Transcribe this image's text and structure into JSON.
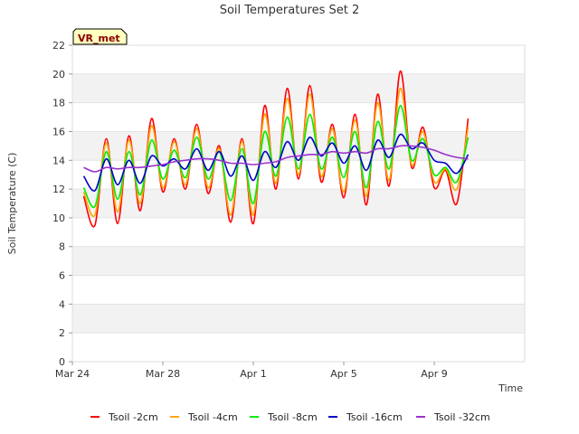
{
  "chart_data": {
    "type": "line",
    "title": "Soil Temperatures Set 2",
    "xlabel": "Time",
    "ylabel": "Soil Temperature (C)",
    "badge": "VR_met",
    "ylim": [
      0,
      22
    ],
    "yticks": [
      0,
      2,
      4,
      6,
      8,
      10,
      12,
      14,
      16,
      18,
      20,
      22
    ],
    "xlim": [
      "2024-03-24T00:00",
      "2024-04-13T00:00"
    ],
    "xticks": [
      {
        "label": "Mar 24",
        "date": "2024-03-24"
      },
      {
        "label": "Mar 28",
        "date": "2024-03-28"
      },
      {
        "label": "Apr 1",
        "date": "2024-04-01"
      },
      {
        "label": "Apr 5",
        "date": "2024-04-05"
      },
      {
        "label": "Apr 9",
        "date": "2024-04-09"
      }
    ],
    "grid": true,
    "legend_position": "bottom",
    "x": [
      "2024-03-24T12:00",
      "2024-03-25T00:00",
      "2024-03-25T12:00",
      "2024-03-26T00:00",
      "2024-03-26T12:00",
      "2024-03-27T00:00",
      "2024-03-27T12:00",
      "2024-03-28T00:00",
      "2024-03-28T12:00",
      "2024-03-29T00:00",
      "2024-03-29T12:00",
      "2024-03-30T00:00",
      "2024-03-30T12:00",
      "2024-03-31T00:00",
      "2024-03-31T12:00",
      "2024-04-01T00:00",
      "2024-04-01T12:00",
      "2024-04-02T00:00",
      "2024-04-02T12:00",
      "2024-04-03T00:00",
      "2024-04-03T12:00",
      "2024-04-04T00:00",
      "2024-04-04T12:00",
      "2024-04-05T00:00",
      "2024-04-05T12:00",
      "2024-04-06T00:00",
      "2024-04-06T12:00",
      "2024-04-07T00:00",
      "2024-04-07T12:00",
      "2024-04-08T00:00",
      "2024-04-08T12:00",
      "2024-04-09T00:00",
      "2024-04-09T12:00",
      "2024-04-10T00:00",
      "2024-04-10T12:00"
    ],
    "series": [
      {
        "name": "Tsoil -2cm",
        "color": "#ff0000",
        "values": [
          11.5,
          9.5,
          15.5,
          9.6,
          15.7,
          10.5,
          16.9,
          11.8,
          15.5,
          12.0,
          16.5,
          11.7,
          15.0,
          9.7,
          15.5,
          9.6,
          17.8,
          12.0,
          19.0,
          12.7,
          19.2,
          12.5,
          16.5,
          11.4,
          17.2,
          10.9,
          18.6,
          12.2,
          20.2,
          13.5,
          16.3,
          12.1,
          13.3,
          11.0,
          16.9
        ]
      },
      {
        "name": "Tsoil -4cm",
        "color": "#ffa500",
        "values": [
          11.8,
          10.2,
          15.2,
          10.4,
          15.4,
          11.0,
          16.4,
          12.1,
          15.3,
          12.3,
          16.2,
          12.1,
          14.8,
          10.2,
          15.3,
          10.2,
          17.2,
          12.4,
          18.3,
          13.0,
          18.6,
          12.9,
          16.2,
          11.8,
          16.8,
          11.5,
          18.0,
          12.6,
          19.0,
          13.7,
          16.0,
          12.5,
          13.4,
          12.0,
          16.3
        ]
      },
      {
        "name": "Tsoil -8cm",
        "color": "#00ee00",
        "values": [
          12.1,
          10.8,
          14.6,
          11.3,
          14.6,
          11.6,
          15.4,
          12.7,
          14.7,
          12.8,
          15.6,
          12.7,
          14.6,
          11.2,
          14.8,
          11.0,
          16.0,
          12.9,
          17.0,
          13.4,
          17.2,
          13.4,
          15.6,
          12.8,
          16.0,
          12.1,
          16.7,
          13.4,
          17.8,
          14.0,
          15.5,
          13.0,
          13.5,
          12.5,
          15.6
        ]
      },
      {
        "name": "Tsoil -16cm",
        "color": "#0000cc",
        "values": [
          12.9,
          11.9,
          14.1,
          12.3,
          14.0,
          12.4,
          14.3,
          13.6,
          14.1,
          13.4,
          14.8,
          13.3,
          14.6,
          12.9,
          14.3,
          12.6,
          14.6,
          13.5,
          15.3,
          14.0,
          15.6,
          14.3,
          15.2,
          13.8,
          15.0,
          13.3,
          15.4,
          14.2,
          15.8,
          14.8,
          15.2,
          14.0,
          13.8,
          13.1,
          14.4
        ]
      },
      {
        "name": "Tsoil -32cm",
        "color": "#9932cc",
        "values": [
          13.5,
          13.2,
          13.5,
          13.4,
          13.5,
          13.5,
          13.6,
          13.7,
          13.9,
          14.0,
          14.1,
          14.1,
          14.0,
          13.8,
          13.8,
          13.7,
          13.8,
          13.9,
          14.2,
          14.3,
          14.4,
          14.4,
          14.6,
          14.5,
          14.6,
          14.5,
          14.8,
          14.8,
          15.0,
          15.0,
          14.9,
          14.7,
          14.4,
          14.2,
          14.1
        ]
      }
    ]
  }
}
